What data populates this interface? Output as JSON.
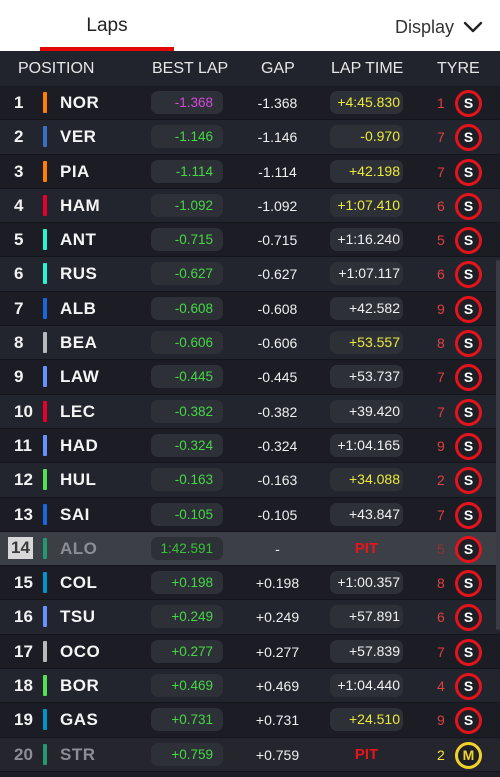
{
  "tabs": {
    "laps": "Laps",
    "display": "Display"
  },
  "columns": {
    "position": "POSITION",
    "best_lap": "BEST LAP",
    "gap": "GAP",
    "lap_time": "LAP TIME",
    "tyre": "TYRE"
  },
  "colors": {
    "accent": "#e10600",
    "mclaren": "#ff8000",
    "redbull": "#3671c6",
    "ferrari": "#e8002d",
    "mercedes": "#27f4d2",
    "williams": "#1868db",
    "haas": "#b6babd",
    "racingbulls": "#6692ff",
    "sauber": "#52e252",
    "aston": "#229971",
    "alpine": "#0093cc",
    "purple": "#d14bd8",
    "green": "#45d745",
    "yellow": "#eaea3a",
    "pit": "#e8141c"
  },
  "rows": [
    {
      "pos": "1",
      "team_color": "#ff8000",
      "driver": "NOR",
      "best": "-1.368",
      "best_style": "purple",
      "gap": "-1.368",
      "lap": "+4:45.830",
      "lap_style": "yellow",
      "age": "1",
      "compound": "S"
    },
    {
      "pos": "2",
      "team_color": "#3671c6",
      "driver": "VER",
      "best": "-1.146",
      "best_style": "green",
      "gap": "-1.146",
      "lap": "-0.970",
      "lap_style": "yellow",
      "age": "7",
      "compound": "S"
    },
    {
      "pos": "3",
      "team_color": "#ff8000",
      "driver": "PIA",
      "best": "-1.114",
      "best_style": "green",
      "gap": "-1.114",
      "lap": "+42.198",
      "lap_style": "yellow",
      "age": "7",
      "compound": "S"
    },
    {
      "pos": "4",
      "team_color": "#e8002d",
      "driver": "HAM",
      "best": "-1.092",
      "best_style": "green",
      "gap": "-1.092",
      "lap": "+1:07.410",
      "lap_style": "yellow",
      "age": "6",
      "compound": "S"
    },
    {
      "pos": "5",
      "team_color": "#27f4d2",
      "driver": "ANT",
      "best": "-0.715",
      "best_style": "green",
      "gap": "-0.715",
      "lap": "+1:16.240",
      "lap_style": "white",
      "age": "5",
      "compound": "S"
    },
    {
      "pos": "6",
      "team_color": "#27f4d2",
      "driver": "RUS",
      "best": "-0.627",
      "best_style": "green",
      "gap": "-0.627",
      "lap": "+1:07.117",
      "lap_style": "white",
      "age": "6",
      "compound": "S"
    },
    {
      "pos": "7",
      "team_color": "#1868db",
      "driver": "ALB",
      "best": "-0.608",
      "best_style": "green",
      "gap": "-0.608",
      "lap": "+42.582",
      "lap_style": "white",
      "age": "9",
      "compound": "S"
    },
    {
      "pos": "8",
      "team_color": "#b6babd",
      "driver": "BEA",
      "best": "-0.606",
      "best_style": "green",
      "gap": "-0.606",
      "lap": "+53.557",
      "lap_style": "yellow",
      "age": "8",
      "compound": "S"
    },
    {
      "pos": "9",
      "team_color": "#6692ff",
      "driver": "LAW",
      "best": "-0.445",
      "best_style": "green",
      "gap": "-0.445",
      "lap": "+53.737",
      "lap_style": "white",
      "age": "7",
      "compound": "S"
    },
    {
      "pos": "10",
      "team_color": "#e8002d",
      "driver": "LEC",
      "best": "-0.382",
      "best_style": "green",
      "gap": "-0.382",
      "lap": "+39.420",
      "lap_style": "white",
      "age": "7",
      "compound": "S"
    },
    {
      "pos": "11",
      "team_color": "#6692ff",
      "driver": "HAD",
      "best": "-0.324",
      "best_style": "green",
      "gap": "-0.324",
      "lap": "+1:04.165",
      "lap_style": "white",
      "age": "9",
      "compound": "S"
    },
    {
      "pos": "12",
      "team_color": "#52e252",
      "driver": "HUL",
      "best": "-0.163",
      "best_style": "green",
      "gap": "-0.163",
      "lap": "+34.088",
      "lap_style": "yellow",
      "age": "2",
      "compound": "S"
    },
    {
      "pos": "13",
      "team_color": "#1868db",
      "driver": "SAI",
      "best": "-0.105",
      "best_style": "green",
      "gap": "-0.105",
      "lap": "+43.847",
      "lap_style": "white",
      "age": "7",
      "compound": "S"
    },
    {
      "pos": "14",
      "team_color": "#229971",
      "driver": "ALO",
      "best": "1:42.591",
      "best_style": "green2",
      "gap": "-",
      "lap": "PIT",
      "lap_style": "pit",
      "age": "5",
      "compound": "S",
      "retired": true
    },
    {
      "pos": "15",
      "team_color": "#0093cc",
      "driver": "COL",
      "best": "+0.198",
      "best_style": "green",
      "gap": "+0.198",
      "lap": "+1:00.357",
      "lap_style": "white",
      "age": "8",
      "compound": "S"
    },
    {
      "pos": "16",
      "team_color": "#6692ff",
      "driver": "TSU",
      "best": "+0.249",
      "best_style": "green",
      "gap": "+0.249",
      "lap": "+57.891",
      "lap_style": "white",
      "age": "6",
      "compound": "S"
    },
    {
      "pos": "17",
      "team_color": "#b6babd",
      "driver": "OCO",
      "best": "+0.277",
      "best_style": "green",
      "gap": "+0.277",
      "lap": "+57.839",
      "lap_style": "white",
      "age": "7",
      "compound": "S"
    },
    {
      "pos": "18",
      "team_color": "#52e252",
      "driver": "BOR",
      "best": "+0.469",
      "best_style": "green",
      "gap": "+0.469",
      "lap": "+1:04.440",
      "lap_style": "white",
      "age": "4",
      "compound": "S"
    },
    {
      "pos": "19",
      "team_color": "#0093cc",
      "driver": "GAS",
      "best": "+0.731",
      "best_style": "green",
      "gap": "+0.731",
      "lap": "+24.510",
      "lap_style": "yellow",
      "age": "9",
      "compound": "S"
    },
    {
      "pos": "20",
      "team_color": "#229971",
      "driver": "STR",
      "best": "+0.759",
      "best_style": "green",
      "gap": "+0.759",
      "lap": "PIT",
      "lap_style": "pit",
      "age": "2",
      "compound": "M",
      "last": true
    }
  ]
}
